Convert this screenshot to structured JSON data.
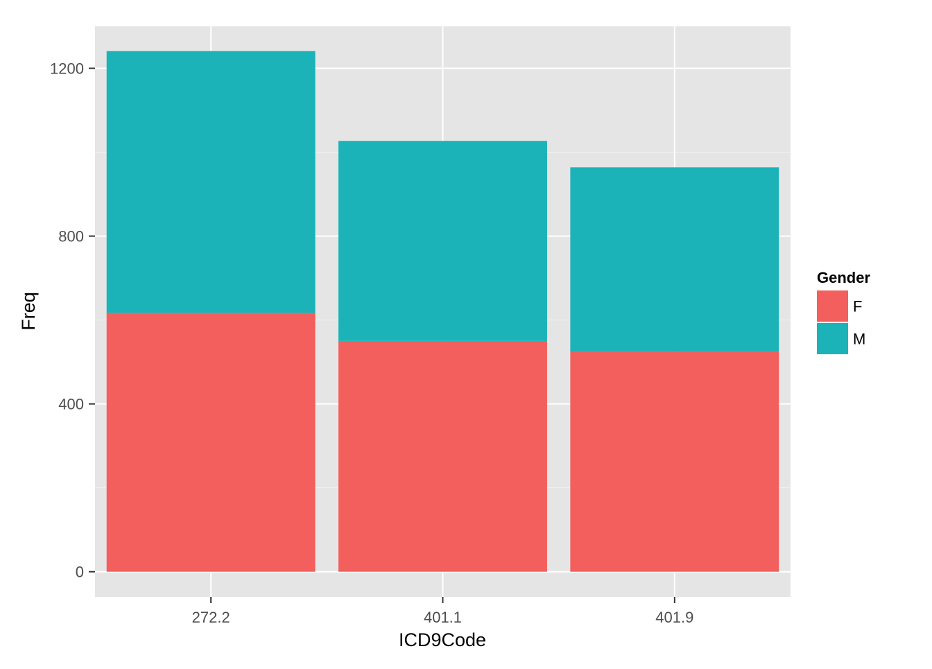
{
  "chart_data": {
    "type": "bar",
    "stacked": true,
    "title": "",
    "xlabel": "ICD9Code",
    "ylabel": "Freq",
    "categories": [
      "272.2",
      "401.1",
      "401.9"
    ],
    "series": [
      {
        "name": "F",
        "values": [
          617,
          550,
          524
        ],
        "color": "#F25F5C"
      },
      {
        "name": "M",
        "values": [
          624,
          477,
          440
        ],
        "color": "#1BB3B8"
      }
    ],
    "ylim": [
      -60,
      1300
    ],
    "yticks": [
      0,
      400,
      800,
      1200
    ],
    "ytick_labels": [
      "0",
      "400",
      "800",
      "1200"
    ],
    "legend": {
      "title": "Gender",
      "placement": "right"
    },
    "grid": true,
    "background_color": "#E5E5E5",
    "grid_color": "#FFFFFF"
  }
}
